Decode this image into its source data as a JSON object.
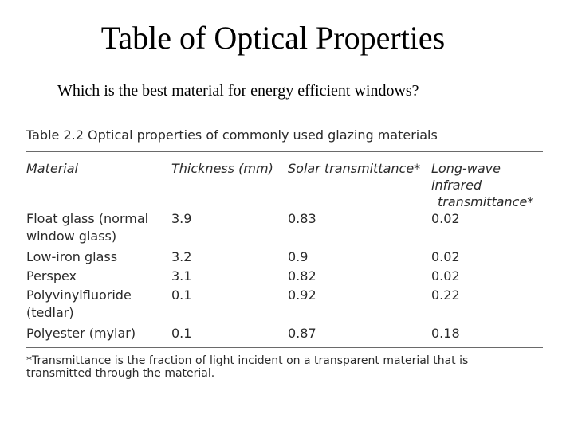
{
  "slide": {
    "title": "Table of Optical Properties",
    "subtitle": "Which is the best material for energy efficient windows?"
  },
  "table": {
    "caption": "Table 2.2  Optical properties of commonly used glazing materials",
    "headers": {
      "material": "Material",
      "thickness": "Thickness (mm)",
      "solar": "Solar transmittance*",
      "longwave_line1": "Long-wave",
      "longwave_line2": "infrared",
      "longwave_line3": "transmittance*"
    },
    "rows": [
      {
        "material_line1": "Float glass (normal",
        "material_line2": "window glass)",
        "thickness": "3.9",
        "solar": "0.83",
        "longwave": "0.02"
      },
      {
        "material_line1": "Low-iron glass",
        "material_line2": "",
        "thickness": "3.2",
        "solar": "0.9",
        "longwave": "0.02"
      },
      {
        "material_line1": "Perspex",
        "material_line2": "",
        "thickness": "3.1",
        "solar": "0.82",
        "longwave": "0.02"
      },
      {
        "material_line1": "Polyvinylfluoride",
        "material_line2": "(tedlar)",
        "thickness": "0.1",
        "solar": "0.92",
        "longwave": "0.22"
      },
      {
        "material_line1": "Polyester (mylar)",
        "material_line2": "",
        "thickness": "0.1",
        "solar": "0.87",
        "longwave": "0.18"
      }
    ],
    "footnote_line1": "*Transmittance is the fraction of light incident on a transparent material that is",
    "footnote_line2": "transmitted through the material."
  }
}
